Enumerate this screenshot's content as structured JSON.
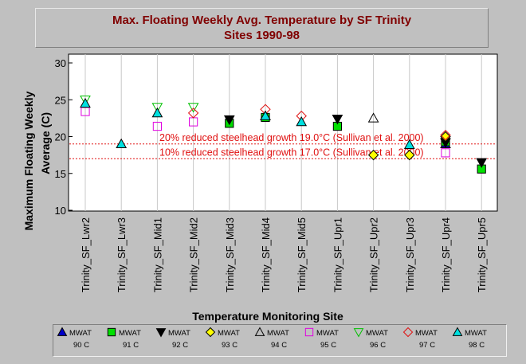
{
  "chart_data": {
    "type": "scatter",
    "title_line1": "Max. Floating Weekly Avg. Temperature by SF Trinity",
    "title_line2": "Sites 1990-98",
    "xlabel": "Temperature Monitoring Site",
    "ylabel_line1": "Maximum Floating Weekly",
    "ylabel_line2": "Average (C)",
    "ylim": [
      10,
      30
    ],
    "yticks": [
      "10",
      "15",
      "20",
      "25",
      "30"
    ],
    "categories": [
      "Trinity_SF_Lwr2",
      "Trinity_SF_Lwr3",
      "Trinity_SF_Mid1",
      "Trinity_SF_Mid2",
      "Trinity_SF_Mid3",
      "Trinity_SF_Mid4",
      "Trinity_SF_Mid5",
      "Trinity_SF_Upr1",
      "Trinity_SF_Upr2",
      "Trinity_SF_Upr3",
      "Trinity_SF_Upr4",
      "Trinity_SF_Upr5"
    ],
    "grid": "vertical",
    "reference_lines": [
      {
        "value": 19.0,
        "label": "20% reduced steelhead growth 19.0°C (Sullivan et al. 2000)",
        "color": "#e01010"
      },
      {
        "value": 17.0,
        "label": "10% reduced steelhead growth 17.0°C (Sullivan et al. 2000)",
        "color": "#e01010"
      }
    ],
    "series": [
      {
        "legend_top": "MWAT",
        "legend_bottom": "90 C",
        "marker": "triangle-up",
        "fill": "#0000cc",
        "stroke": "#000000",
        "values": [
          null,
          null,
          null,
          null,
          null,
          22.8,
          null,
          null,
          null,
          null,
          19.0,
          null
        ]
      },
      {
        "legend_top": "MWAT",
        "legend_bottom": "91 C",
        "marker": "square",
        "fill": "#00e000",
        "stroke": "#000000",
        "values": [
          null,
          null,
          null,
          null,
          21.8,
          22.6,
          null,
          21.4,
          null,
          null,
          19.3,
          15.6
        ]
      },
      {
        "legend_top": "MWAT",
        "legend_bottom": "92 C",
        "marker": "triangle-down",
        "fill": "#000000",
        "stroke": "#000000",
        "values": [
          null,
          null,
          null,
          null,
          22.3,
          null,
          null,
          22.4,
          null,
          null,
          19.2,
          16.5
        ]
      },
      {
        "legend_top": "MWAT",
        "legend_bottom": "93 C",
        "marker": "diamond",
        "fill": "#ffff00",
        "stroke": "#000000",
        "values": [
          null,
          null,
          null,
          null,
          null,
          null,
          null,
          null,
          17.5,
          17.5,
          20.0,
          null
        ]
      },
      {
        "legend_top": "MWAT",
        "legend_bottom": "94 C",
        "marker": "triangle-up-open",
        "fill": "none",
        "stroke": "#000000",
        "values": [
          null,
          null,
          null,
          null,
          null,
          null,
          null,
          null,
          22.5,
          null,
          null,
          null
        ]
      },
      {
        "legend_top": "MWAT",
        "legend_bottom": "95 C",
        "marker": "square-open",
        "fill": "none",
        "stroke": "#e000e0",
        "values": [
          23.4,
          null,
          21.4,
          22.0,
          null,
          null,
          null,
          null,
          null,
          null,
          17.8,
          null
        ]
      },
      {
        "legend_top": "MWAT",
        "legend_bottom": "96 C",
        "marker": "triangle-down-open",
        "fill": "none",
        "stroke": "#00c000",
        "values": [
          25.0,
          null,
          24.0,
          24.0,
          null,
          null,
          null,
          null,
          null,
          null,
          null,
          null
        ]
      },
      {
        "legend_top": "MWAT",
        "legend_bottom": "97 C",
        "marker": "diamond-open",
        "fill": "none",
        "stroke": "#e01010",
        "values": [
          null,
          null,
          null,
          23.2,
          null,
          23.7,
          22.8,
          null,
          null,
          null,
          20.2,
          null
        ]
      },
      {
        "legend_top": "MWAT",
        "legend_bottom": "98 C",
        "marker": "triangle-up",
        "fill": "#00e0e0",
        "stroke": "#000000",
        "values": [
          24.5,
          19.0,
          23.2,
          null,
          null,
          22.8,
          22.0,
          null,
          null,
          18.9,
          null,
          null
        ]
      }
    ]
  }
}
